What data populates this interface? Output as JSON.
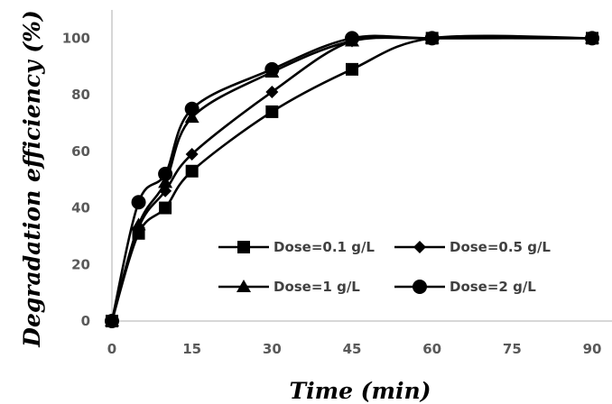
{
  "chart_data": {
    "type": "line",
    "title": "",
    "xlabel": "Time (min)",
    "ylabel": "Degradation efficiency (%)",
    "x_ticks": [
      "0",
      "15",
      "30",
      "45",
      "60",
      "75",
      "90"
    ],
    "y_ticks": [
      "0",
      "20",
      "40",
      "60",
      "80",
      "100"
    ],
    "xlim": [
      0,
      90
    ],
    "ylim": [
      0,
      110
    ],
    "grid": false,
    "legend_position": "lower-right",
    "series": [
      {
        "name": "Dose=0.1 g/L",
        "marker": "square",
        "x": [
          0,
          5,
          10,
          15,
          30,
          45,
          60,
          90
        ],
        "y": [
          0,
          31,
          40,
          53,
          74,
          89,
          100,
          100
        ]
      },
      {
        "name": "Dose=0.5 g/L",
        "marker": "diamond",
        "x": [
          0,
          5,
          10,
          15,
          30,
          45,
          60,
          90
        ],
        "y": [
          0,
          33,
          46,
          59,
          81,
          99,
          100,
          100
        ]
      },
      {
        "name": "Dose=1 g/L",
        "marker": "triangle",
        "x": [
          0,
          5,
          10,
          15,
          30,
          45,
          60,
          90
        ],
        "y": [
          0,
          34,
          49,
          72,
          88,
          99,
          100,
          100
        ]
      },
      {
        "name": "Dose=2 g/L",
        "marker": "circle",
        "x": [
          0,
          5,
          10,
          15,
          30,
          45,
          60,
          90
        ],
        "y": [
          0,
          42,
          52,
          75,
          89,
          100,
          100,
          100
        ]
      }
    ],
    "colors": {
      "line": "#000000",
      "axis": "#bfbfbf",
      "tick_text": "#595959"
    }
  }
}
